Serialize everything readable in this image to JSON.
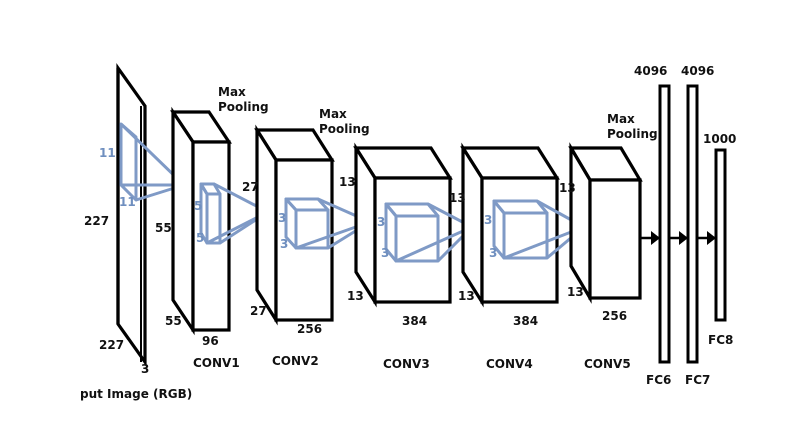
{
  "colors": {
    "outline": "#000000",
    "kernel": "#7f9ac6",
    "kernel_text": "#6f8fbf"
  },
  "input": {
    "caption": "put Image (RGB)",
    "height": "227",
    "width": "227",
    "depth": "3",
    "kernel_h": "11",
    "kernel_w": "11"
  },
  "conv1": {
    "name": "CONV1",
    "height": "55",
    "width": "55",
    "depth": "96",
    "kernel_h": "5",
    "kernel_w": "5",
    "pool": [
      "Max",
      "Pooling"
    ]
  },
  "conv2": {
    "name": "CONV2",
    "height": "27",
    "width": "27",
    "depth": "256",
    "kernel_h": "3",
    "kernel_w": "3",
    "pool": [
      "Max",
      "Pooling"
    ]
  },
  "conv3": {
    "name": "CONV3",
    "height": "13",
    "width": "13",
    "depth": "384",
    "kernel_h": "3",
    "kernel_w": "3"
  },
  "conv4": {
    "name": "CONV4",
    "height": "13",
    "width": "13",
    "depth": "384",
    "kernel_h": "3",
    "kernel_w": "3"
  },
  "conv5": {
    "name": "CONV5",
    "height": "13",
    "width": "13",
    "depth": "256",
    "pool": [
      "Max",
      "Pooling"
    ]
  },
  "fc6": {
    "name": "FC6",
    "size": "4096"
  },
  "fc7": {
    "name": "FC7",
    "size": "4096"
  },
  "fc8": {
    "name": "FC8",
    "size": "1000"
  }
}
